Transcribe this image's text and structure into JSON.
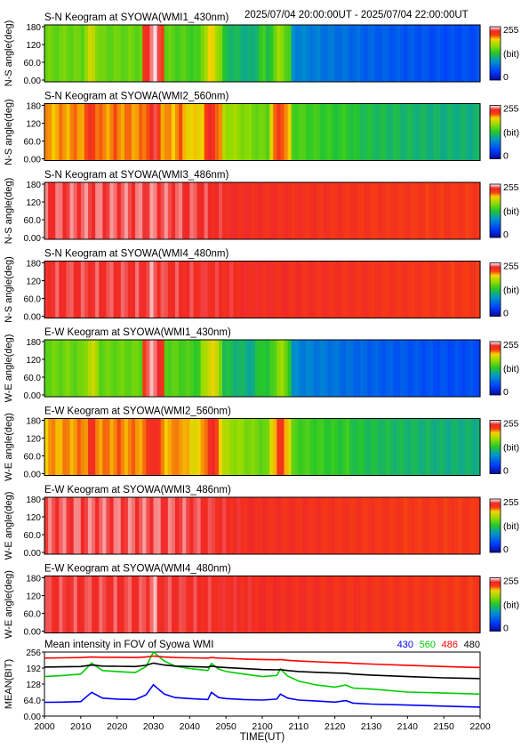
{
  "header": {
    "date_range": "2025/07/04 20:00:00UT - 2025/07/04 22:00:00UT"
  },
  "colorbar": {
    "max_label": "255",
    "unit_label": "(bit)",
    "min_label": "0"
  },
  "keograms": [
    {
      "title": "S-N Keogram at SYOWA(WMI1_430nm)",
      "ylabel": "N-S angle(deg)",
      "yticks": [
        "180",
        "120",
        "60.0",
        "0.00"
      ],
      "base": [
        150,
        150,
        150,
        150,
        140,
        120,
        100,
        80,
        70,
        60,
        55,
        50,
        50
      ],
      "bands": [
        [
          2030,
          255
        ],
        [
          2013,
          185
        ],
        [
          2046,
          195
        ],
        [
          2105,
          170
        ],
        [
          2006,
          160
        ],
        [
          2100,
          140
        ],
        [
          2123,
          70
        ]
      ]
    },
    {
      "title": "S-N Keogram at SYOWA(WMI2_560nm)",
      "ylabel": "N-S angle(deg)",
      "yticks": [
        "180",
        "120",
        "60.0",
        "0.00"
      ],
      "base": [
        200,
        205,
        205,
        205,
        195,
        170,
        150,
        140,
        130,
        120,
        115,
        110,
        110
      ],
      "bands": [
        [
          2030,
          240
        ],
        [
          2013,
          230
        ],
        [
          2046,
          235
        ],
        [
          2105,
          225
        ],
        [
          2020,
          215
        ],
        [
          2037,
          215
        ],
        [
          2123,
          140
        ]
      ]
    },
    {
      "title": "S-N Keogram at SYOWA(WMI3_486nm)",
      "ylabel": "N-S angle(deg)",
      "yticks": [
        "180",
        "120",
        "60.0",
        "0.00"
      ],
      "base": [
        238,
        240,
        240,
        240,
        238,
        232,
        228,
        226,
        224,
        222,
        220,
        220,
        220
      ],
      "bands": [
        [
          2030,
          248
        ],
        [
          2013,
          242
        ]
      ]
    },
    {
      "title": "S-N Keogram at SYOWA(WMI4_480nm)",
      "ylabel": "N-S angle(deg)",
      "yticks": [
        "180",
        "120",
        "60.0",
        "0.00"
      ],
      "base": [
        235,
        236,
        236,
        236,
        234,
        232,
        230,
        228,
        226,
        224,
        222,
        220,
        220
      ],
      "bands": [
        [
          2030,
          250
        ],
        [
          2013,
          240
        ],
        [
          2046,
          238
        ]
      ]
    },
    {
      "title": "E-W Keogram at SYOWA(WMI1_430nm)",
      "ylabel": "W-E angle(deg)",
      "yticks": [
        "180",
        "120",
        "60.0",
        "0.00"
      ],
      "base": [
        150,
        150,
        150,
        150,
        140,
        120,
        100,
        80,
        70,
        60,
        55,
        50,
        50
      ],
      "bands": [
        [
          2030,
          255
        ],
        [
          2013,
          185
        ],
        [
          2046,
          195
        ],
        [
          2105,
          170
        ],
        [
          2006,
          160
        ],
        [
          2100,
          140
        ],
        [
          2123,
          70
        ]
      ]
    },
    {
      "title": "E-W Keogram at SYOWA(WMI2_560nm)",
      "ylabel": "W-E angle(deg)",
      "yticks": [
        "180",
        "120",
        "60.0",
        "0.00"
      ],
      "base": [
        200,
        205,
        205,
        205,
        195,
        170,
        150,
        140,
        130,
        120,
        115,
        110,
        110
      ],
      "bands": [
        [
          2030,
          240
        ],
        [
          2013,
          230
        ],
        [
          2046,
          235
        ],
        [
          2105,
          225
        ],
        [
          2020,
          215
        ],
        [
          2037,
          215
        ],
        [
          2123,
          140
        ]
      ]
    },
    {
      "title": "E-W Keogram at SYOWA(WMI3_486nm)",
      "ylabel": "W-E angle(deg)",
      "yticks": [
        "180",
        "120",
        "60.0",
        "0.00"
      ],
      "base": [
        238,
        240,
        240,
        240,
        238,
        232,
        228,
        226,
        224,
        222,
        220,
        220,
        220
      ],
      "bands": [
        [
          2030,
          248
        ],
        [
          2013,
          242
        ]
      ]
    },
    {
      "title": "E-W Keogram at SYOWA(WMI4_480nm)",
      "ylabel": "W-E angle(deg)",
      "yticks": [
        "180",
        "120",
        "60.0",
        "0.00"
      ],
      "base": [
        235,
        236,
        236,
        236,
        234,
        232,
        230,
        228,
        226,
        224,
        222,
        220,
        220
      ],
      "bands": [
        [
          2030,
          250
        ],
        [
          2013,
          240
        ],
        [
          2046,
          238
        ]
      ]
    }
  ],
  "chart_data": {
    "type": "line",
    "title": "Mean intensity in FOV of Syowa WMI",
    "xlabel": "TIME(UT)",
    "ylabel": "MEAN(BIT)",
    "x_ticks": [
      "2000",
      "2010",
      "2020",
      "2030",
      "2040",
      "2050",
      "2100",
      "2110",
      "2120",
      "2130",
      "2140",
      "2150",
      "2200"
    ],
    "x_range_minutes": [
      0,
      120
    ],
    "y_ticks": [
      "256",
      "192",
      "128",
      "64.0",
      "0.00"
    ],
    "ylim": [
      0,
      256
    ],
    "grid": false,
    "legend_position": "top-right",
    "x": [
      2000,
      2005,
      2010,
      2013,
      2016,
      2020,
      2025,
      2028,
      2030,
      2033,
      2036,
      2040,
      2045,
      2046,
      2048,
      2050,
      2055,
      2100,
      2104,
      2105,
      2107,
      2110,
      2115,
      2120,
      2123,
      2125,
      2130,
      2140,
      2150,
      2200
    ],
    "series": [
      {
        "name": "430",
        "color": "#0000ff",
        "values": [
          55,
          56,
          58,
          95,
          72,
          68,
          66,
          85,
          125,
          88,
          74,
          70,
          66,
          95,
          74,
          70,
          66,
          64,
          68,
          88,
          72,
          64,
          60,
          56,
          62,
          52,
          48,
          44,
          40,
          36
        ]
      },
      {
        "name": "560",
        "color": "#00cc00",
        "values": [
          158,
          162,
          168,
          212,
          182,
          178,
          174,
          198,
          258,
          220,
          200,
          190,
          182,
          210,
          188,
          178,
          168,
          158,
          162,
          188,
          160,
          140,
          124,
          116,
          124,
          112,
          108,
          96,
          92,
          88
        ]
      },
      {
        "name": "486",
        "color": "#ff0000",
        "values": [
          232,
          233,
          234,
          236,
          235,
          235,
          234,
          236,
          240,
          236,
          234,
          233,
          232,
          234,
          232,
          231,
          228,
          226,
          225,
          226,
          223,
          220,
          217,
          214,
          213,
          211,
          208,
          203,
          198,
          194
        ]
      },
      {
        "name": "480",
        "color": "#000000",
        "values": [
          196,
          197,
          198,
          204,
          200,
          199,
          198,
          203,
          212,
          204,
          200,
          198,
          196,
          200,
          196,
          194,
          190,
          186,
          185,
          186,
          182,
          178,
          175,
          172,
          171,
          168,
          164,
          158,
          153,
          150
        ]
      }
    ]
  }
}
